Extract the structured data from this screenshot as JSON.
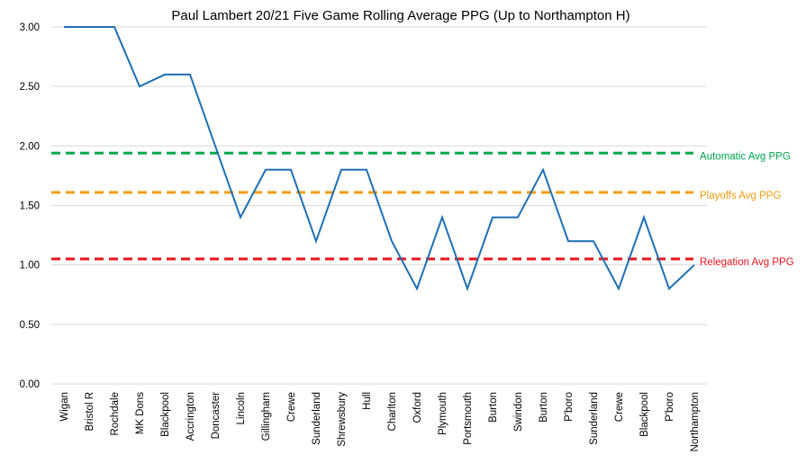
{
  "chart_data": {
    "type": "line",
    "title": "Paul Lambert 20/21 Five Game Rolling Average PPG (Up to Northampton H)",
    "xlabel": "",
    "ylabel": "",
    "ylim": [
      0,
      3
    ],
    "yticks": [
      "0.00",
      "0.50",
      "1.00",
      "1.50",
      "2.00",
      "2.50",
      "3.00"
    ],
    "grid": "horizontal",
    "categories": [
      "Wigan",
      "Bristol R",
      "Rochdale",
      "MK Dons",
      "Blackpool",
      "Accrington",
      "Doncaster",
      "Lincoln",
      "Gillingham",
      "Crewe",
      "Sunderland",
      "Shrewsbury",
      "Hull",
      "Charlton",
      "Oxford",
      "Plymouth",
      "Portsmouth",
      "Burton",
      "Swindon",
      "Burton",
      "P'boro",
      "Sunderland",
      "Crewe",
      "Blackpool",
      "P'boro",
      "Northampton"
    ],
    "series": [
      {
        "values": [
          3.0,
          3.0,
          3.0,
          2.5,
          2.6,
          2.6,
          2.0,
          1.4,
          1.8,
          1.8,
          1.2,
          1.8,
          1.8,
          1.2,
          0.8,
          1.4,
          0.8,
          1.4,
          1.4,
          1.8,
          1.2,
          1.2,
          0.8,
          1.4,
          0.8,
          1.0
        ],
        "color": "#1f6fb5"
      }
    ],
    "reference_lines": [
      {
        "label": "Automatic Avg PPG",
        "value": 1.94,
        "color": "#00a84f"
      },
      {
        "label": "Playoffs Avg PPG",
        "value": 1.61,
        "color": "#f39c12"
      },
      {
        "label": "Relegation Avg PPG",
        "value": 1.05,
        "color": "#e8141c"
      }
    ]
  }
}
